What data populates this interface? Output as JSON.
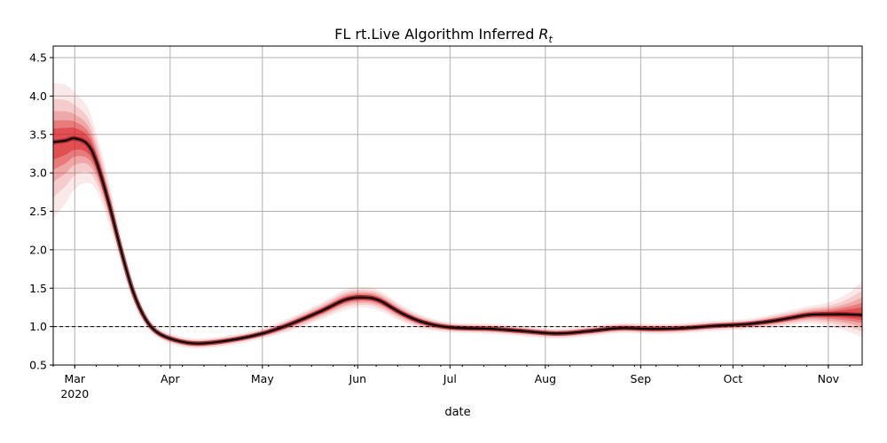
{
  "chart_data": {
    "type": "line",
    "title": "FL rt.Live Algorithm Inferred",
    "title_math": "R",
    "title_math_sub": "t",
    "xlabel": "date",
    "ylabel": "",
    "ylim": [
      0.5,
      4.65
    ],
    "xlim": [
      "2020-02-23",
      "2020-11-12"
    ],
    "x_ticks": [
      {
        "date": "2020-03-01",
        "label": "Mar",
        "year": "2020"
      },
      {
        "date": "2020-04-01",
        "label": "Apr"
      },
      {
        "date": "2020-05-01",
        "label": "May"
      },
      {
        "date": "2020-06-01",
        "label": "Jun"
      },
      {
        "date": "2020-07-01",
        "label": "Jul"
      },
      {
        "date": "2020-08-01",
        "label": "Aug"
      },
      {
        "date": "2020-09-01",
        "label": "Sep"
      },
      {
        "date": "2020-10-01",
        "label": "Oct"
      },
      {
        "date": "2020-11-01",
        "label": "Nov"
      }
    ],
    "y_ticks": [
      0.5,
      1.0,
      1.5,
      2.0,
      2.5,
      3.0,
      3.5,
      4.0,
      4.5
    ],
    "y_tick_labels": [
      "0.5",
      "1.0",
      "1.5",
      "2.0",
      "2.5",
      "3.0",
      "3.5",
      "4.0",
      "4.5"
    ],
    "grid": true,
    "reference_line": {
      "y": 1.0,
      "style": "dashed",
      "color": "#000000"
    },
    "colors": {
      "median_line": "#000000",
      "band": "#d7191c",
      "grid": "#b0b0b0"
    },
    "series": [
      {
        "values": [
          {
            "x": "2020-02-23",
            "y": 3.4,
            "lo": 2.95,
            "hi": 3.75
          },
          {
            "x": "2020-02-27",
            "y": 3.42,
            "lo": 3.05,
            "hi": 3.75
          },
          {
            "x": "2020-03-01",
            "y": 3.45,
            "lo": 3.15,
            "hi": 3.72
          },
          {
            "x": "2020-03-05",
            "y": 3.38,
            "lo": 3.15,
            "hi": 3.6
          },
          {
            "x": "2020-03-08",
            "y": 3.15,
            "lo": 2.98,
            "hi": 3.32
          },
          {
            "x": "2020-03-12",
            "y": 2.62,
            "lo": 2.5,
            "hi": 2.75
          },
          {
            "x": "2020-03-16",
            "y": 2.0,
            "lo": 1.92,
            "hi": 2.08
          },
          {
            "x": "2020-03-20",
            "y": 1.45,
            "lo": 1.39,
            "hi": 1.51
          },
          {
            "x": "2020-03-24",
            "y": 1.1,
            "lo": 1.06,
            "hi": 1.14
          },
          {
            "x": "2020-03-28",
            "y": 0.92,
            "lo": 0.89,
            "hi": 0.95
          },
          {
            "x": "2020-04-03",
            "y": 0.82,
            "lo": 0.79,
            "hi": 0.85
          },
          {
            "x": "2020-04-10",
            "y": 0.78,
            "lo": 0.75,
            "hi": 0.81
          },
          {
            "x": "2020-04-20",
            "y": 0.82,
            "lo": 0.79,
            "hi": 0.85
          },
          {
            "x": "2020-05-01",
            "y": 0.91,
            "lo": 0.88,
            "hi": 0.94
          },
          {
            "x": "2020-05-10",
            "y": 1.03,
            "lo": 0.99,
            "hi": 1.07
          },
          {
            "x": "2020-05-20",
            "y": 1.2,
            "lo": 1.15,
            "hi": 1.25
          },
          {
            "x": "2020-05-28",
            "y": 1.35,
            "lo": 1.29,
            "hi": 1.41
          },
          {
            "x": "2020-06-03",
            "y": 1.38,
            "lo": 1.32,
            "hi": 1.44
          },
          {
            "x": "2020-06-08",
            "y": 1.34,
            "lo": 1.28,
            "hi": 1.4
          },
          {
            "x": "2020-06-15",
            "y": 1.18,
            "lo": 1.13,
            "hi": 1.23
          },
          {
            "x": "2020-06-22",
            "y": 1.06,
            "lo": 1.02,
            "hi": 1.1
          },
          {
            "x": "2020-07-01",
            "y": 0.99,
            "lo": 0.96,
            "hi": 1.02
          },
          {
            "x": "2020-07-15",
            "y": 0.97,
            "lo": 0.94,
            "hi": 1.0
          },
          {
            "x": "2020-07-25",
            "y": 0.94,
            "lo": 0.91,
            "hi": 0.97
          },
          {
            "x": "2020-08-05",
            "y": 0.91,
            "lo": 0.88,
            "hi": 0.94
          },
          {
            "x": "2020-08-15",
            "y": 0.94,
            "lo": 0.91,
            "hi": 0.97
          },
          {
            "x": "2020-08-25",
            "y": 0.98,
            "lo": 0.95,
            "hi": 1.01
          },
          {
            "x": "2020-09-05",
            "y": 0.97,
            "lo": 0.94,
            "hi": 1.0
          },
          {
            "x": "2020-09-15",
            "y": 0.98,
            "lo": 0.95,
            "hi": 1.01
          },
          {
            "x": "2020-09-25",
            "y": 1.01,
            "lo": 0.98,
            "hi": 1.04
          },
          {
            "x": "2020-10-05",
            "y": 1.03,
            "lo": 1.0,
            "hi": 1.06
          },
          {
            "x": "2020-10-15",
            "y": 1.08,
            "lo": 1.04,
            "hi": 1.12
          },
          {
            "x": "2020-10-25",
            "y": 1.15,
            "lo": 1.1,
            "hi": 1.2
          },
          {
            "x": "2020-11-01",
            "y": 1.16,
            "lo": 1.09,
            "hi": 1.23
          },
          {
            "x": "2020-11-07",
            "y": 1.16,
            "lo": 1.06,
            "hi": 1.28
          },
          {
            "x": "2020-11-12",
            "y": 1.15,
            "lo": 1.02,
            "hi": 1.35
          }
        ]
      }
    ]
  }
}
